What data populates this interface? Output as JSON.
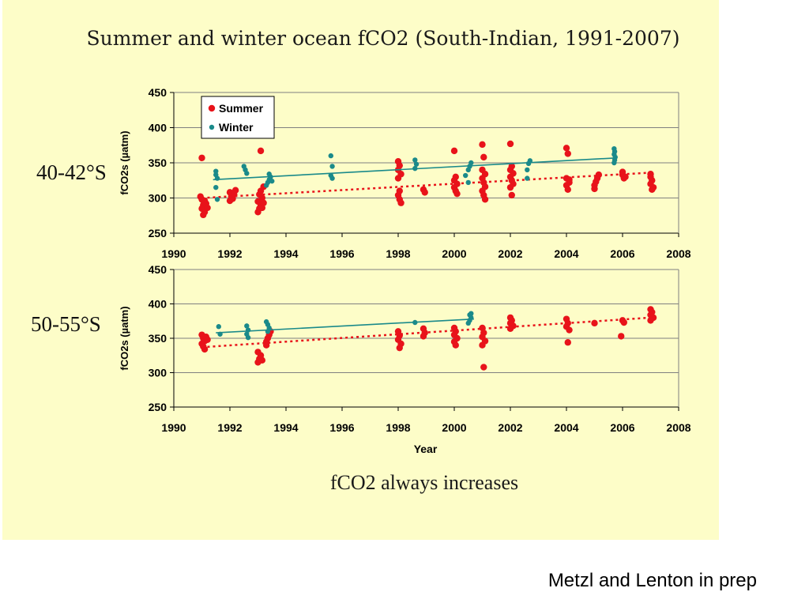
{
  "slide": {
    "title": "Summer and winter ocean fCO2 (South-Indian, 1991-2007)",
    "footer_note": "fCO2 always increases",
    "credit": "Metzl and Lenton in prep",
    "background_color": "#fdfdc8"
  },
  "colors": {
    "summer": "#e8131a",
    "winter": "#1a8a8a",
    "grid": "#808080"
  },
  "chart_data": [
    {
      "type": "scatter",
      "region_label": "40-42°S",
      "ylabel": "fCO2s (µatm)",
      "xlabel": "",
      "xlim": [
        1990,
        2008
      ],
      "ylim": [
        250,
        450
      ],
      "xticks": [
        1990,
        1992,
        1994,
        1996,
        1998,
        2000,
        2002,
        2004,
        2006,
        2008
      ],
      "yticks": [
        250,
        300,
        350,
        400,
        450
      ],
      "grid": "horizontal",
      "legend": {
        "position": "top-left",
        "entries": [
          "Summer",
          "Winter"
        ]
      },
      "series": [
        {
          "name": "Summer",
          "color": "#e8131a",
          "points": [
            [
              1991.0,
              357
            ],
            [
              1990.95,
              302
            ],
            [
              1991.0,
              298
            ],
            [
              1991.05,
              290
            ],
            [
              1991.0,
              285
            ],
            [
              1991.1,
              280
            ],
            [
              1991.05,
              276
            ],
            [
              1991.15,
              292
            ],
            [
              1991.2,
              286
            ],
            [
              1991.1,
              296
            ],
            [
              1992.0,
              308
            ],
            [
              1992.05,
              302
            ],
            [
              1992.0,
              296
            ],
            [
              1992.1,
              299
            ],
            [
              1992.2,
              311
            ],
            [
              1992.15,
              305
            ],
            [
              1993.0,
              280
            ],
            [
              1993.05,
              285
            ],
            [
              1993.1,
              290
            ],
            [
              1993.0,
              295
            ],
            [
              1993.15,
              300
            ],
            [
              1993.05,
              305
            ],
            [
              1993.1,
              310
            ],
            [
              1993.2,
              316
            ],
            [
              1993.15,
              286
            ],
            [
              1993.2,
              293
            ],
            [
              1993.1,
              367
            ],
            [
              1998.0,
              352
            ],
            [
              1998.05,
              346
            ],
            [
              1998.0,
              340
            ],
            [
              1998.1,
              334
            ],
            [
              1998.0,
              328
            ],
            [
              1998.05,
              310
            ],
            [
              1998.0,
              304
            ],
            [
              1998.05,
              298
            ],
            [
              1998.1,
              293
            ],
            [
              1998.9,
              312
            ],
            [
              1998.95,
              308
            ],
            [
              2000.0,
              367
            ],
            [
              2000.05,
              330
            ],
            [
              2000.0,
              325
            ],
            [
              2000.1,
              320
            ],
            [
              2000.0,
              315
            ],
            [
              2000.05,
              310
            ],
            [
              2000.1,
              306
            ],
            [
              2001.0,
              376
            ],
            [
              2001.05,
              358
            ],
            [
              2001.0,
              340
            ],
            [
              2001.1,
              334
            ],
            [
              2001.0,
              328
            ],
            [
              2001.05,
              322
            ],
            [
              2001.1,
              316
            ],
            [
              2001.0,
              310
            ],
            [
              2001.05,
              304
            ],
            [
              2001.1,
              298
            ],
            [
              2002.0,
              377
            ],
            [
              2002.05,
              345
            ],
            [
              2002.0,
              340
            ],
            [
              2002.1,
              335
            ],
            [
              2002.0,
              330
            ],
            [
              2002.05,
              325
            ],
            [
              2002.1,
              320
            ],
            [
              2002.0,
              315
            ],
            [
              2002.05,
              304
            ],
            [
              2004.0,
              371
            ],
            [
              2004.05,
              363
            ],
            [
              2004.0,
              328
            ],
            [
              2004.1,
              322
            ],
            [
              2004.0,
              318
            ],
            [
              2004.05,
              312
            ],
            [
              2004.1,
              326
            ],
            [
              2005.0,
              318
            ],
            [
              2005.05,
              323
            ],
            [
              2005.1,
              328
            ],
            [
              2005.0,
              313
            ],
            [
              2005.15,
              333
            ],
            [
              2006.0,
              333
            ],
            [
              2006.05,
              328
            ],
            [
              2006.0,
              337
            ],
            [
              2006.1,
              330
            ],
            [
              2007.0,
              330
            ],
            [
              2007.05,
              325
            ],
            [
              2007.0,
              320
            ],
            [
              2007.1,
              315
            ],
            [
              2007.05,
              312
            ],
            [
              2007.0,
              334
            ]
          ],
          "trend": {
            "style": "dotted",
            "from": [
              1991.0,
              300
            ],
            "to": [
              2007.0,
              336
            ]
          }
        },
        {
          "name": "Winter",
          "color": "#1a8a8a",
          "points": [
            [
              1991.5,
              338
            ],
            [
              1991.5,
              333
            ],
            [
              1991.55,
              328
            ],
            [
              1991.5,
              315
            ],
            [
              1991.55,
              298
            ],
            [
              1992.5,
              345
            ],
            [
              1992.55,
              340
            ],
            [
              1992.6,
              335
            ],
            [
              1993.3,
              318
            ],
            [
              1993.35,
              322
            ],
            [
              1993.4,
              326
            ],
            [
              1993.45,
              330
            ],
            [
              1993.4,
              334
            ],
            [
              1993.5,
              324
            ],
            [
              1995.6,
              360
            ],
            [
              1995.65,
              345
            ],
            [
              1995.6,
              332
            ],
            [
              1995.65,
              328
            ],
            [
              1998.6,
              354
            ],
            [
              1998.65,
              348
            ],
            [
              1998.6,
              342
            ],
            [
              2000.4,
              332
            ],
            [
              2000.5,
              340
            ],
            [
              2000.55,
              345
            ],
            [
              2000.6,
              350
            ],
            [
              2000.5,
              322
            ],
            [
              2002.6,
              340
            ],
            [
              2002.65,
              349
            ],
            [
              2002.7,
              353
            ],
            [
              2002.6,
              328
            ],
            [
              2005.7,
              370
            ],
            [
              2005.72,
              366
            ],
            [
              2005.7,
              362
            ],
            [
              2005.74,
              358
            ],
            [
              2005.72,
              354
            ],
            [
              2005.7,
              350
            ]
          ],
          "trend": {
            "style": "solid",
            "from": [
              1991.4,
              326
            ],
            "to": [
              2005.8,
              357
            ]
          }
        }
      ]
    },
    {
      "type": "scatter",
      "region_label": "50-55°S",
      "ylabel": "fCO2s (µatm)",
      "xlabel": "Year",
      "xlim": [
        1990,
        2008
      ],
      "ylim": [
        250,
        450
      ],
      "xticks": [
        1990,
        1992,
        1994,
        1996,
        1998,
        2000,
        2002,
        2004,
        2006,
        2008
      ],
      "yticks": [
        250,
        300,
        350,
        400,
        450
      ],
      "grid": "horizontal",
      "legend": null,
      "series": [
        {
          "name": "Summer",
          "color": "#e8131a",
          "points": [
            [
              1991.0,
              355
            ],
            [
              1991.05,
              350
            ],
            [
              1991.1,
              346
            ],
            [
              1991.0,
              342
            ],
            [
              1991.05,
              338
            ],
            [
              1991.1,
              334
            ],
            [
              1991.15,
              352
            ],
            [
              1991.2,
              348
            ],
            [
              1993.0,
              315
            ],
            [
              1993.05,
              320
            ],
            [
              1993.1,
              325
            ],
            [
              1993.0,
              330
            ],
            [
              1993.15,
              318
            ],
            [
              1993.3,
              345
            ],
            [
              1993.35,
              350
            ],
            [
              1993.4,
              355
            ],
            [
              1993.45,
              360
            ],
            [
              1993.3,
              340
            ],
            [
              1998.0,
              360
            ],
            [
              1998.05,
              354
            ],
            [
              1998.0,
              348
            ],
            [
              1998.1,
              342
            ],
            [
              1998.05,
              336
            ],
            [
              1998.9,
              364
            ],
            [
              1998.95,
              358
            ],
            [
              1998.9,
              353
            ],
            [
              2000.0,
              365
            ],
            [
              2000.05,
              360
            ],
            [
              2000.0,
              355
            ],
            [
              2000.1,
              350
            ],
            [
              2000.0,
              345
            ],
            [
              2000.05,
              340
            ],
            [
              2001.0,
              365
            ],
            [
              2001.05,
              358
            ],
            [
              2001.0,
              352
            ],
            [
              2001.1,
              346
            ],
            [
              2001.0,
              340
            ],
            [
              2001.05,
              308
            ],
            [
              2002.0,
              380
            ],
            [
              2002.05,
              376
            ],
            [
              2002.0,
              372
            ],
            [
              2002.1,
              368
            ],
            [
              2002.0,
              364
            ],
            [
              2004.0,
              378
            ],
            [
              2004.05,
              372
            ],
            [
              2004.0,
              367
            ],
            [
              2004.1,
              362
            ],
            [
              2004.05,
              344
            ],
            [
              2005.0,
              372
            ],
            [
              2006.0,
              376
            ],
            [
              2006.05,
              373
            ],
            [
              2005.95,
              353
            ],
            [
              2007.0,
              392
            ],
            [
              2007.05,
              388
            ],
            [
              2007.0,
              384
            ],
            [
              2007.1,
              380
            ],
            [
              2007.0,
              376
            ]
          ],
          "trend": {
            "style": "dotted",
            "from": [
              1991.0,
              337
            ],
            "to": [
              2007.0,
              380
            ]
          }
        },
        {
          "name": "Winter",
          "color": "#1a8a8a",
          "points": [
            [
              1991.6,
              367
            ],
            [
              1991.65,
              356
            ],
            [
              1992.6,
              368
            ],
            [
              1992.65,
              362
            ],
            [
              1992.6,
              356
            ],
            [
              1992.65,
              351
            ],
            [
              1993.3,
              374
            ],
            [
              1993.35,
              370
            ],
            [
              1993.4,
              365
            ],
            [
              1993.35,
              360
            ],
            [
              1998.6,
              373
            ],
            [
              2000.5,
              372
            ],
            [
              2000.55,
              376
            ],
            [
              2000.6,
              380
            ],
            [
              2000.55,
              384
            ],
            [
              2000.6,
              386
            ]
          ],
          "trend": {
            "style": "solid",
            "from": [
              1991.5,
              358
            ],
            "to": [
              2000.7,
              378
            ]
          }
        }
      ]
    }
  ]
}
